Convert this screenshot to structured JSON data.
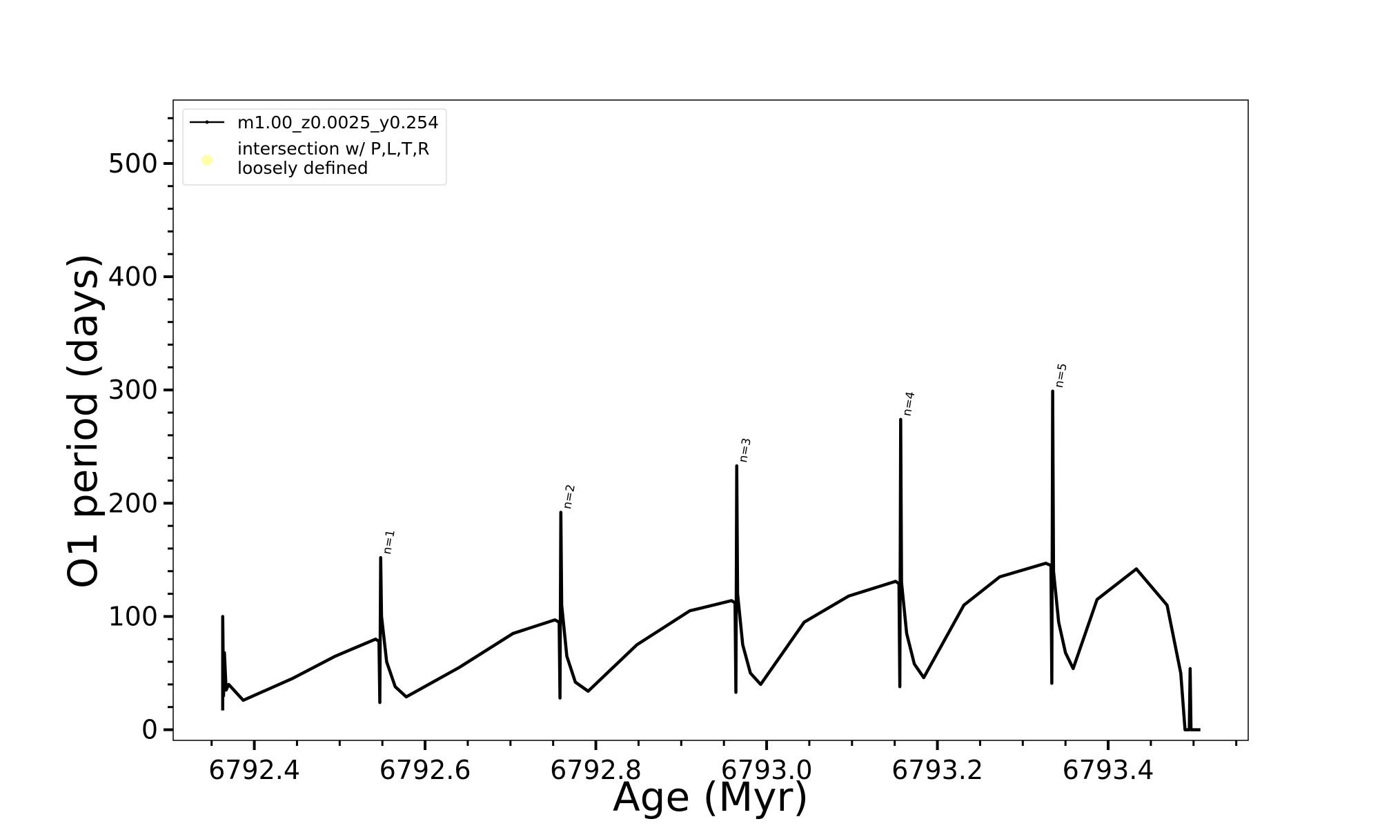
{
  "chart_data": {
    "type": "line",
    "xlabel": "Age (Myr)",
    "ylabel": "O1 period (days)",
    "xlim": [
      6792.305,
      6793.564
    ],
    "ylim": [
      -9.4,
      556
    ],
    "xticks": [
      6792.4,
      6792.6,
      6792.8,
      {
        "value": 6793,
        "label": "6793.0"
      },
      6793.2,
      6793.4
    ],
    "yticks": [
      0,
      100,
      200,
      300,
      400,
      500
    ],
    "xminor_ticks": [
      6792.35,
      6792.45,
      6792.5,
      6792.55,
      6792.65,
      6792.7,
      6792.75,
      6792.85,
      6792.9,
      6792.95,
      6793.05,
      6793.1,
      6793.15,
      6793.25,
      6793.3,
      6793.35,
      6793.45,
      6793.5,
      6793.55
    ],
    "yminor_ticks": [
      20,
      40,
      60,
      80,
      120,
      140,
      160,
      180,
      220,
      240,
      260,
      280,
      320,
      340,
      360,
      380,
      420,
      440,
      460,
      480,
      520,
      540
    ],
    "legend": "upper left",
    "series": [
      {
        "name": "m1.00_z0.0025_y0.254",
        "color": "#000000",
        "x": [
          6792.363,
          6792.363,
          6792.364,
          6792.365,
          6792.367,
          6792.37,
          6792.387,
          6792.444,
          6792.495,
          6792.542,
          6792.546,
          6792.547,
          6792.548,
          6792.549,
          6792.555,
          6792.565,
          6792.578,
          6792.64,
          6792.703,
          6792.752,
          6792.757,
          6792.758,
          6792.759,
          6792.76,
          6792.766,
          6792.776,
          6792.791,
          6792.848,
          6792.91,
          6792.959,
          6792.963,
          6792.964,
          6792.965,
          6792.966,
          6792.972,
          6792.981,
          6792.993,
          6793.044,
          6793.096,
          6793.151,
          6793.155,
          6793.156,
          6793.157,
          6793.158,
          6793.164,
          6793.173,
          6793.184,
          6793.231,
          6793.273,
          6793.327,
          6793.333,
          6793.334,
          6793.335,
          6793.336,
          6793.342,
          6793.35,
          6793.359,
          6793.387,
          6793.433,
          6793.469,
          6793.485,
          6793.49,
          6793.495,
          6793.496,
          6793.497,
          6793.508
        ],
        "values": [
          17,
          100,
          30,
          68,
          35,
          40,
          26,
          45,
          65,
          80,
          78,
          24,
          152,
          100,
          60,
          38,
          29,
          55,
          85,
          97,
          95,
          28,
          192,
          110,
          65,
          42,
          34,
          75,
          105,
          114,
          112,
          33,
          233,
          120,
          75,
          50,
          40,
          95,
          118,
          131,
          129,
          38,
          274,
          130,
          85,
          58,
          46,
          110,
          135,
          147,
          145,
          41,
          299,
          140,
          95,
          68,
          54,
          115,
          142,
          110,
          50,
          0,
          0,
          54,
          0,
          0
        ]
      }
    ],
    "legend_extra": {
      "label_lines": [
        "intersection w/ P,L,T,R",
        "loosely defined"
      ],
      "color": "#ffffaa"
    },
    "annotations": [
      {
        "text": "n=1",
        "x": 6792.548,
        "y": 152
      },
      {
        "text": "n=2",
        "x": 6792.759,
        "y": 192
      },
      {
        "text": "n=3",
        "x": 6792.965,
        "y": 233
      },
      {
        "text": "n=4",
        "x": 6793.157,
        "y": 274
      },
      {
        "text": "n=5",
        "x": 6793.335,
        "y": 299
      }
    ]
  }
}
